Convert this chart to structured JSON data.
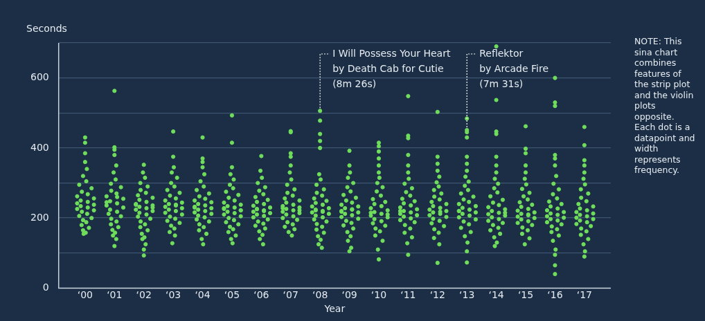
{
  "chart_data": {
    "type": "scatter",
    "xlabel": "Year",
    "ylabel": "Seconds",
    "xlim": [
      -0.9,
      17.9
    ],
    "xticks": [
      {
        "value": 0,
        "label": "‘00"
      },
      {
        "value": 1,
        "label": "‘01"
      },
      {
        "value": 2,
        "label": "‘02"
      },
      {
        "value": 3,
        "label": "‘03"
      },
      {
        "value": 4,
        "label": "‘04"
      },
      {
        "value": 5,
        "label": "‘05"
      },
      {
        "value": 6,
        "label": "‘06"
      },
      {
        "value": 7,
        "label": "‘07"
      },
      {
        "value": 8,
        "label": "‘08"
      },
      {
        "value": 9,
        "label": "‘09"
      },
      {
        "value": 10,
        "label": "‘10"
      },
      {
        "value": 11,
        "label": "‘11"
      },
      {
        "value": 12,
        "label": "‘12"
      },
      {
        "value": 13,
        "label": "‘13"
      },
      {
        "value": 14,
        "label": "‘14"
      },
      {
        "value": 15,
        "label": "‘15"
      },
      {
        "value": 16,
        "label": "‘16"
      },
      {
        "value": 17,
        "label": "‘17"
      }
    ],
    "ylim": [
      0,
      700
    ],
    "yticks": [
      0,
      {
        "value": 100,
        "label": null
      },
      200,
      {
        "value": 300,
        "label": null
      },
      400,
      {
        "value": 500,
        "label": null
      },
      600,
      {
        "value": 700,
        "label": null
      }
    ],
    "grid": "y",
    "marker": "circle",
    "annotations": [
      {
        "text": "I Will Possess Your Heart\nby Death Cab for Cutie\n(8m 26s)",
        "x": 8,
        "y": 506
      },
      {
        "text": "Reflektor\nby Arcade Fire\n(7m 31s)",
        "x": 13,
        "y": 451
      },
      "NOTE: This sina chart combines features of the strip plot and the violin plots opposite. Each dot is a datapoint and width represents frequency."
    ],
    "series": [
      {
        "color": "#6fdc5c",
        "x": [
          0,
          0,
          0,
          0,
          0.06,
          -0.07,
          0.04,
          -0.2,
          0.22,
          -0.11,
          0.09,
          -0.27,
          0.3,
          -0.15,
          0.09,
          -0.27,
          0.3,
          -0.15,
          0.09,
          -0.27,
          0.3,
          -0.11,
          0.07,
          -0.2,
          0.22,
          -0.07,
          0.04,
          -0.12,
          0.13,
          -0.07,
          0.02,
          -0.05,
          1,
          1,
          1,
          1,
          1.06,
          0.97,
          1.04,
          0.88,
          1.22,
          0.89,
          1.07,
          0.73,
          1.3,
          0.85,
          1.09,
          0.73,
          1.3,
          0.85,
          1.09,
          0.8,
          1.22,
          0.89,
          1.07,
          0.88,
          1.13,
          0.93,
          1.02,
          0.95,
          1.06,
          1,
          1.09,
          0.73,
          2,
          1.97,
          2.04,
          1.88,
          2.13,
          1.89,
          2.07,
          1.8,
          2.3,
          1.85,
          2.09,
          1.73,
          2.3,
          1.85,
          2.09,
          1.73,
          2.3,
          1.85,
          2.09,
          1.8,
          2.22,
          1.89,
          2.04,
          1.88,
          2.13,
          1.93,
          2.02,
          1.95,
          2.06,
          2,
          2,
          1.73,
          2.3,
          3,
          3,
          3.02,
          2.95,
          3.13,
          2.93,
          3.04,
          2.8,
          3.22,
          2.89,
          3.09,
          2.73,
          3.3,
          2.85,
          3.09,
          2.73,
          3.3,
          2.85,
          3.09,
          2.73,
          3.3,
          2.89,
          3.07,
          2.8,
          3.22,
          2.93,
          3.04,
          2.88,
          3.06,
          2.97,
          3.09,
          4,
          4,
          4,
          4,
          4.06,
          3.93,
          4.04,
          3.8,
          4.22,
          3.89,
          4.09,
          3.73,
          4.3,
          3.85,
          4.09,
          3.73,
          4.3,
          3.85,
          4.09,
          3.73,
          4.3,
          3.85,
          4.07,
          3.8,
          4.22,
          3.89,
          4.04,
          3.88,
          4.13,
          3.97,
          4.02,
          3.73,
          5,
          5,
          5,
          4.95,
          5.06,
          4.93,
          5.04,
          4.8,
          5.22,
          4.89,
          5.09,
          4.73,
          5.3,
          4.85,
          5.09,
          4.73,
          5.3,
          4.85,
          5.09,
          4.73,
          5.3,
          4.89,
          5.07,
          4.8,
          5.22,
          4.93,
          5.04,
          4.88,
          5.13,
          4.97,
          5.02,
          4.73,
          5.3,
          6,
          5.97,
          6.02,
          5.88,
          6.13,
          5.93,
          6.07,
          5.8,
          6.22,
          5.85,
          6.09,
          5.73,
          6.3,
          5.85,
          6.09,
          5.73,
          6.3,
          5.85,
          6.09,
          5.73,
          6.22,
          5.89,
          6.07,
          5.8,
          6.13,
          5.93,
          6.04,
          5.95,
          6.06,
          5.85,
          6.09,
          7,
          7,
          7,
          7,
          7,
          6.97,
          7.02,
          6.88,
          7.13,
          6.89,
          7.07,
          6.8,
          7.3,
          6.85,
          7.09,
          6.73,
          7.3,
          6.85,
          7.09,
          6.73,
          7.3,
          6.85,
          7.09,
          6.73,
          7.22,
          6.89,
          7.07,
          6.8,
          7.13,
          6.93,
          7.04,
          6.73,
          7.3,
          8,
          8,
          8,
          8,
          8,
          7.97,
          8.02,
          7.88,
          8.13,
          7.89,
          8.07,
          7.8,
          8.22,
          7.85,
          8.09,
          7.73,
          8.3,
          7.85,
          8.09,
          7.73,
          8.3,
          7.85,
          8.09,
          7.8,
          8.22,
          7.89,
          8.07,
          7.88,
          8.13,
          7.93,
          8.02,
          7.95,
          8.06,
          7.85,
          8.09,
          9,
          9,
          9.02,
          8.95,
          9.13,
          8.93,
          9.04,
          8.8,
          9.22,
          8.89,
          9.09,
          8.73,
          9.3,
          8.85,
          9.09,
          8.73,
          9.3,
          8.85,
          9.09,
          8.73,
          9.3,
          8.89,
          9.07,
          8.8,
          9.13,
          8.93,
          9.04,
          8.95,
          9.06,
          9,
          9.09,
          8.73,
          10,
          10,
          10,
          10,
          10,
          10,
          10.02,
          9.95,
          10.13,
          9.93,
          10.07,
          9.8,
          10.22,
          9.85,
          10.09,
          9.73,
          10.3,
          9.85,
          10.09,
          9.73,
          10.3,
          9.85,
          10.09,
          9.8,
          10.22,
          9.89,
          10.04,
          9.88,
          10.13,
          9.97,
          10,
          9.73,
          10.3,
          11,
          11,
          11,
          11,
          11,
          11,
          11.02,
          10.88,
          11.13,
          10.93,
          11.07,
          10.8,
          11.22,
          10.85,
          11.09,
          10.73,
          11.3,
          10.85,
          11.09,
          10.73,
          11.3,
          10.85,
          11.09,
          10.73,
          11.22,
          10.89,
          11.07,
          10.88,
          11.13,
          10.97,
          11,
          10.73,
          12,
          12,
          12,
          12,
          12.06,
          11.97,
          12.04,
          11.88,
          12.13,
          11.89,
          12.07,
          11.8,
          12.3,
          11.85,
          12.09,
          11.73,
          12.3,
          11.85,
          12.09,
          11.73,
          12.3,
          11.85,
          12.07,
          11.8,
          12.22,
          11.89,
          12.04,
          11.88,
          12.06,
          12,
          12.09,
          13,
          13,
          13,
          13,
          13,
          13,
          13,
          12.95,
          13.06,
          12.93,
          13.04,
          12.8,
          13.22,
          12.89,
          13.07,
          12.73,
          13.3,
          12.85,
          13.09,
          12.73,
          13.3,
          12.85,
          13.09,
          12.73,
          13.3,
          12.89,
          13.07,
          12.8,
          13.13,
          12.93,
          13.02,
          13,
          13,
          12.73,
          14,
          14,
          14,
          14,
          14,
          14,
          14,
          13.95,
          14.06,
          13.93,
          14.04,
          13.8,
          14.22,
          13.89,
          14.09,
          13.73,
          14.3,
          13.85,
          14.09,
          13.73,
          14.3,
          13.85,
          14.09,
          13.73,
          14.22,
          13.89,
          14.07,
          13.8,
          14.13,
          13.93,
          14.02,
          13.95,
          14.3,
          15,
          15,
          15,
          15,
          15,
          14.97,
          15.02,
          14.88,
          15.13,
          14.93,
          15.07,
          14.8,
          15.22,
          14.85,
          15.09,
          14.73,
          15.3,
          14.85,
          15.09,
          14.73,
          15.3,
          14.85,
          15.09,
          14.73,
          15.22,
          14.89,
          15.07,
          14.88,
          15.13,
          14.97,
          15.09,
          16,
          16,
          16,
          16,
          16,
          16,
          16.04,
          15.95,
          16.13,
          15.93,
          16.07,
          15.8,
          16.22,
          15.85,
          16.09,
          15.73,
          16.3,
          15.85,
          16.09,
          15.73,
          16.3,
          15.85,
          16.09,
          15.73,
          16.22,
          15.89,
          16.07,
          15.88,
          16.13,
          15.93,
          16.02,
          16,
          16,
          16,
          17,
          17,
          17,
          17,
          17,
          16.97,
          17.02,
          16.88,
          17.13,
          16.89,
          17.07,
          16.8,
          17.3,
          16.85,
          17.09,
          16.73,
          17.3,
          16.85,
          17.09,
          16.73,
          17.3,
          16.85,
          17.09,
          16.73,
          17.22,
          16.89,
          17.07,
          16.88,
          17.13,
          16.97,
          17.02,
          17
        ],
        "values": [
          430,
          415,
          385,
          360,
          340,
          320,
          305,
          295,
          285,
          275,
          268,
          262,
          256,
          250,
          246,
          242,
          238,
          234,
          230,
          226,
          222,
          218,
          212,
          206,
          200,
          194,
          188,
          180,
          172,
          165,
          158,
          155,
          563,
          402,
          395,
          380,
          350,
          330,
          310,
          298,
          288,
          278,
          270,
          262,
          255,
          248,
          242,
          236,
          230,
          224,
          218,
          212,
          205,
          198,
          190,
          182,
          174,
          166,
          158,
          150,
          140,
          120,
          260,
          245,
          352,
          330,
          315,
          300,
          290,
          280,
          272,
          265,
          258,
          252,
          246,
          240,
          236,
          232,
          228,
          224,
          220,
          215,
          210,
          204,
          198,
          190,
          182,
          174,
          165,
          155,
          145,
          140,
          125,
          110,
          93,
          238,
          230,
          447,
          375,
          345,
          330,
          315,
          300,
          290,
          280,
          272,
          264,
          256,
          250,
          244,
          240,
          236,
          232,
          228,
          224,
          220,
          215,
          210,
          204,
          198,
          192,
          186,
          178,
          170,
          160,
          150,
          128,
          238,
          430,
          370,
          360,
          345,
          325,
          305,
          290,
          280,
          270,
          262,
          255,
          250,
          245,
          240,
          236,
          232,
          228,
          224,
          220,
          216,
          212,
          207,
          202,
          196,
          190,
          182,
          174,
          165,
          155,
          140,
          125,
          230,
          493,
          415,
          345,
          325,
          310,
          295,
          285,
          275,
          266,
          258,
          250,
          244,
          238,
          234,
          230,
          226,
          222,
          218,
          214,
          210,
          205,
          200,
          194,
          188,
          182,
          175,
          168,
          160,
          150,
          140,
          128,
          228,
          222,
          377,
          335,
          315,
          300,
          288,
          278,
          268,
          260,
          252,
          246,
          240,
          235,
          230,
          226,
          222,
          218,
          214,
          210,
          206,
          202,
          196,
          190,
          184,
          178,
          170,
          162,
          152,
          140,
          125,
          225,
          220,
          448,
          445,
          385,
          375,
          350,
          330,
          310,
          295,
          282,
          272,
          264,
          256,
          250,
          244,
          238,
          234,
          230,
          226,
          222,
          218,
          214,
          210,
          205,
          200,
          195,
          188,
          182,
          175,
          168,
          160,
          150,
          228,
          222,
          506,
          478,
          440,
          420,
          400,
          325,
          310,
          295,
          282,
          272,
          264,
          256,
          249,
          243,
          238,
          233,
          228,
          224,
          220,
          216,
          212,
          207,
          202,
          196,
          190,
          183,
          175,
          167,
          158,
          148,
          138,
          125,
          115,
          222,
          218,
          392,
          350,
          330,
          315,
          300,
          288,
          276,
          266,
          258,
          250,
          244,
          238,
          233,
          228,
          224,
          220,
          216,
          212,
          208,
          203,
          198,
          192,
          186,
          179,
          170,
          160,
          148,
          135,
          115,
          105,
          225,
          218,
          415,
          405,
          390,
          370,
          350,
          330,
          315,
          300,
          288,
          276,
          264,
          254,
          246,
          240,
          234,
          228,
          222,
          217,
          212,
          207,
          202,
          197,
          191,
          185,
          178,
          170,
          162,
          150,
          135,
          110,
          82,
          215,
          210,
          548,
          435,
          428,
          380,
          350,
          330,
          312,
          298,
          285,
          274,
          264,
          255,
          248,
          242,
          236,
          230,
          225,
          220,
          216,
          212,
          208,
          204,
          199,
          194,
          188,
          180,
          170,
          158,
          145,
          128,
          95,
          220,
          503,
          375,
          355,
          335,
          318,
          302,
          290,
          280,
          270,
          261,
          253,
          246,
          240,
          234,
          229,
          224,
          220,
          216,
          212,
          208,
          203,
          198,
          192,
          185,
          177,
          168,
          158,
          143,
          125,
          72,
          218,
          484,
          451,
          445,
          430,
          375,
          355,
          335,
          318,
          304,
          292,
          280,
          270,
          261,
          253,
          246,
          240,
          234,
          229,
          224,
          220,
          216,
          212,
          207,
          202,
          196,
          190,
          182,
          172,
          160,
          148,
          130,
          105,
          73,
          220,
          690,
          537,
          447,
          440,
          375,
          350,
          330,
          312,
          298,
          285,
          273,
          262,
          252,
          244,
          237,
          231,
          225,
          220,
          215,
          211,
          207,
          202,
          197,
          192,
          186,
          180,
          172,
          165,
          155,
          145,
          130,
          120,
          215,
          462,
          398,
          385,
          350,
          330,
          312,
          296,
          283,
          272,
          262,
          253,
          245,
          238,
          232,
          226,
          221,
          216,
          212,
          208,
          204,
          200,
          196,
          191,
          186,
          180,
          173,
          165,
          155,
          142,
          125,
          210,
          600,
          530,
          520,
          380,
          370,
          350,
          320,
          298,
          282,
          268,
          256,
          247,
          240,
          233,
          227,
          222,
          217,
          213,
          209,
          205,
          201,
          197,
          193,
          188,
          182,
          176,
          168,
          160,
          150,
          135,
          110,
          95,
          65,
          40,
          460,
          408,
          365,
          350,
          330,
          312,
          296,
          282,
          270,
          258,
          248,
          240,
          233,
          227,
          222,
          217,
          213,
          209,
          205,
          201,
          197,
          193,
          188,
          183,
          177,
          170,
          162,
          152,
          140,
          125,
          105,
          90
        ]
      }
    ]
  }
}
